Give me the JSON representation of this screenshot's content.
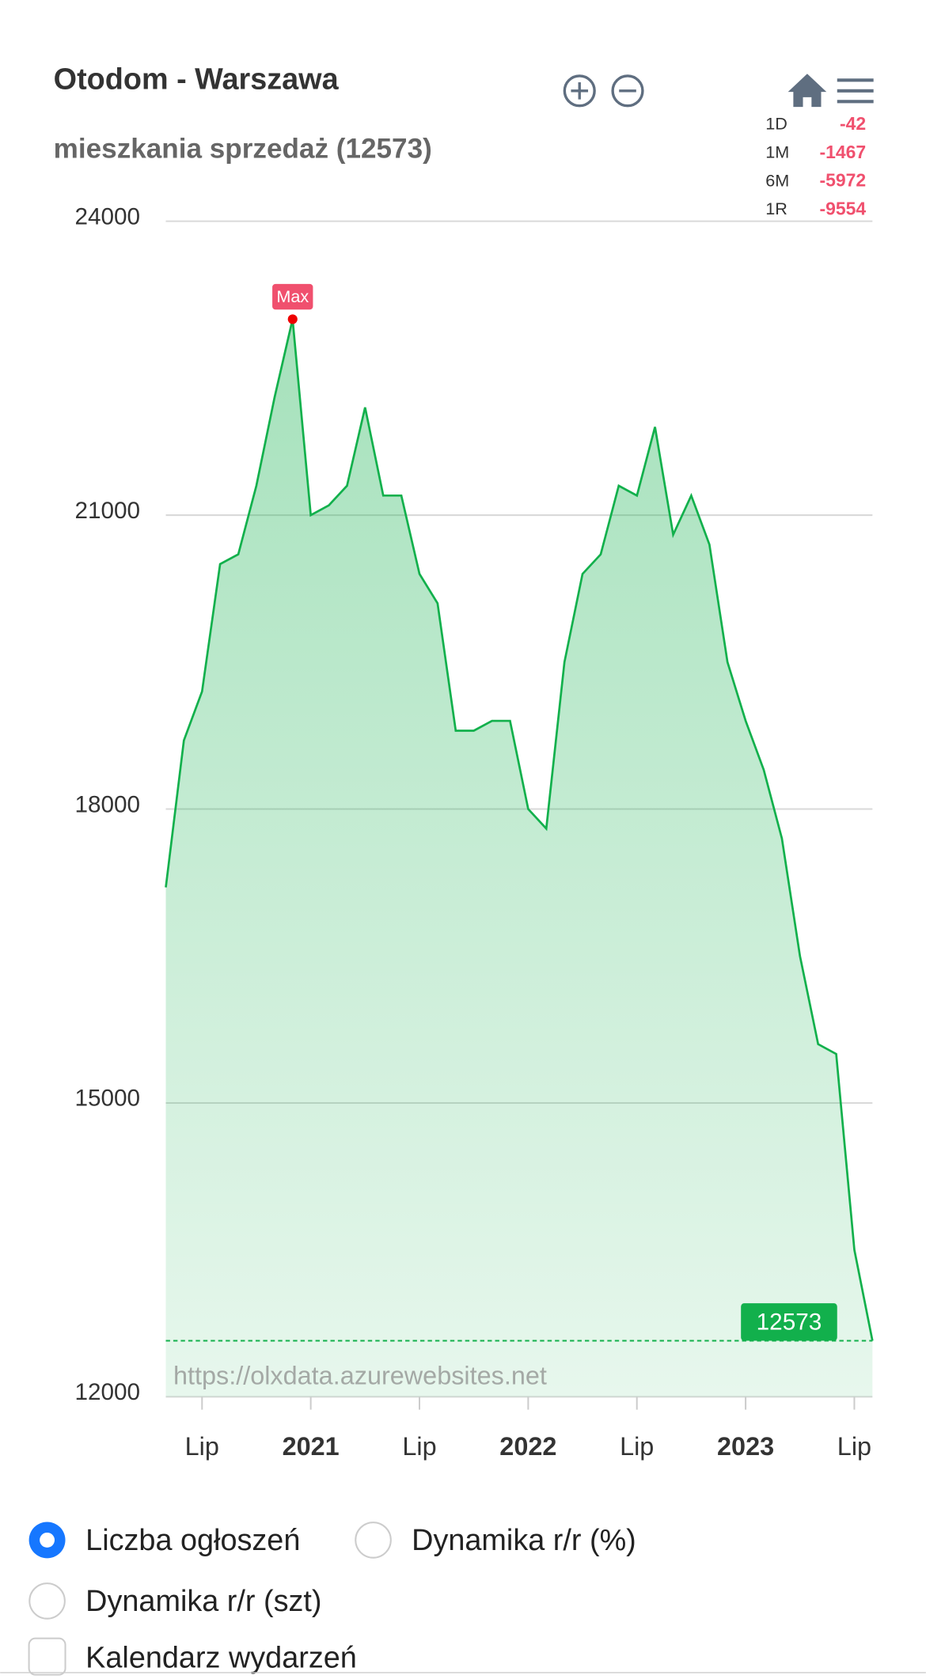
{
  "chart_data": {
    "type": "line",
    "title": "Otodom - Warszawa",
    "subtitle": "mieszkania sprzedaż (12573)",
    "x": [
      "2020-05",
      "2020-06",
      "2020-07",
      "2020-08",
      "2020-09",
      "2020-10",
      "2020-11",
      "2020-12",
      "2021-01",
      "2021-02",
      "2021-03",
      "2021-04",
      "2021-05",
      "2021-06",
      "2021-07",
      "2021-08",
      "2021-09",
      "2021-10",
      "2021-11",
      "2021-12",
      "2022-01",
      "2022-02",
      "2022-03",
      "2022-04",
      "2022-05",
      "2022-06",
      "2022-07",
      "2022-08",
      "2022-09",
      "2022-10",
      "2022-11",
      "2022-12",
      "2023-01",
      "2023-02",
      "2023-03",
      "2023-04",
      "2023-05",
      "2023-06",
      "2023-07",
      "2023-08"
    ],
    "values": [
      17200,
      18700,
      19200,
      20500,
      20600,
      21300,
      22200,
      23000,
      21000,
      21100,
      21300,
      22100,
      21200,
      21200,
      20400,
      20100,
      18800,
      18800,
      18900,
      18900,
      18000,
      17800,
      19500,
      20400,
      20600,
      21300,
      21200,
      21900,
      20800,
      21200,
      20700,
      19500,
      18900,
      18400,
      17700,
      16500,
      15600,
      15500,
      13500,
      12573
    ],
    "color": "#12b04c",
    "xlim": [
      "2020-05",
      "2023-08"
    ],
    "xticks": [
      {
        "value": "2020-07",
        "label": "Lip"
      },
      {
        "value": "2021-01",
        "label": "2021"
      },
      {
        "value": "2021-07",
        "label": "Lip"
      },
      {
        "value": "2022-01",
        "label": "2022"
      },
      {
        "value": "2022-07",
        "label": "Lip"
      },
      {
        "value": "2023-01",
        "label": "2023"
      },
      {
        "value": "2023-07",
        "label": "Lip"
      }
    ],
    "ylim": [
      12000,
      24000
    ],
    "yticks": [
      12000,
      15000,
      18000,
      21000,
      24000
    ],
    "grid": true,
    "max_label": "Max",
    "max_index": 7,
    "last_index": 39,
    "watermark": "https://olxdata.azurewebsites.net",
    "stats": [
      {
        "label": "1D",
        "value": -42
      },
      {
        "label": "1M",
        "value": -1467
      },
      {
        "label": "6M",
        "value": -5972
      },
      {
        "label": "1R",
        "value": -9554
      }
    ]
  },
  "controls": {
    "options": [
      {
        "label": "Liczba ogłoszeń",
        "selected": true
      },
      {
        "label": "Dynamika r/r (%)",
        "selected": false
      },
      {
        "label": "Dynamika r/r (szt)",
        "selected": false
      }
    ],
    "checkbox": {
      "label": "Kalendarz wydarzeń",
      "checked": false
    }
  }
}
